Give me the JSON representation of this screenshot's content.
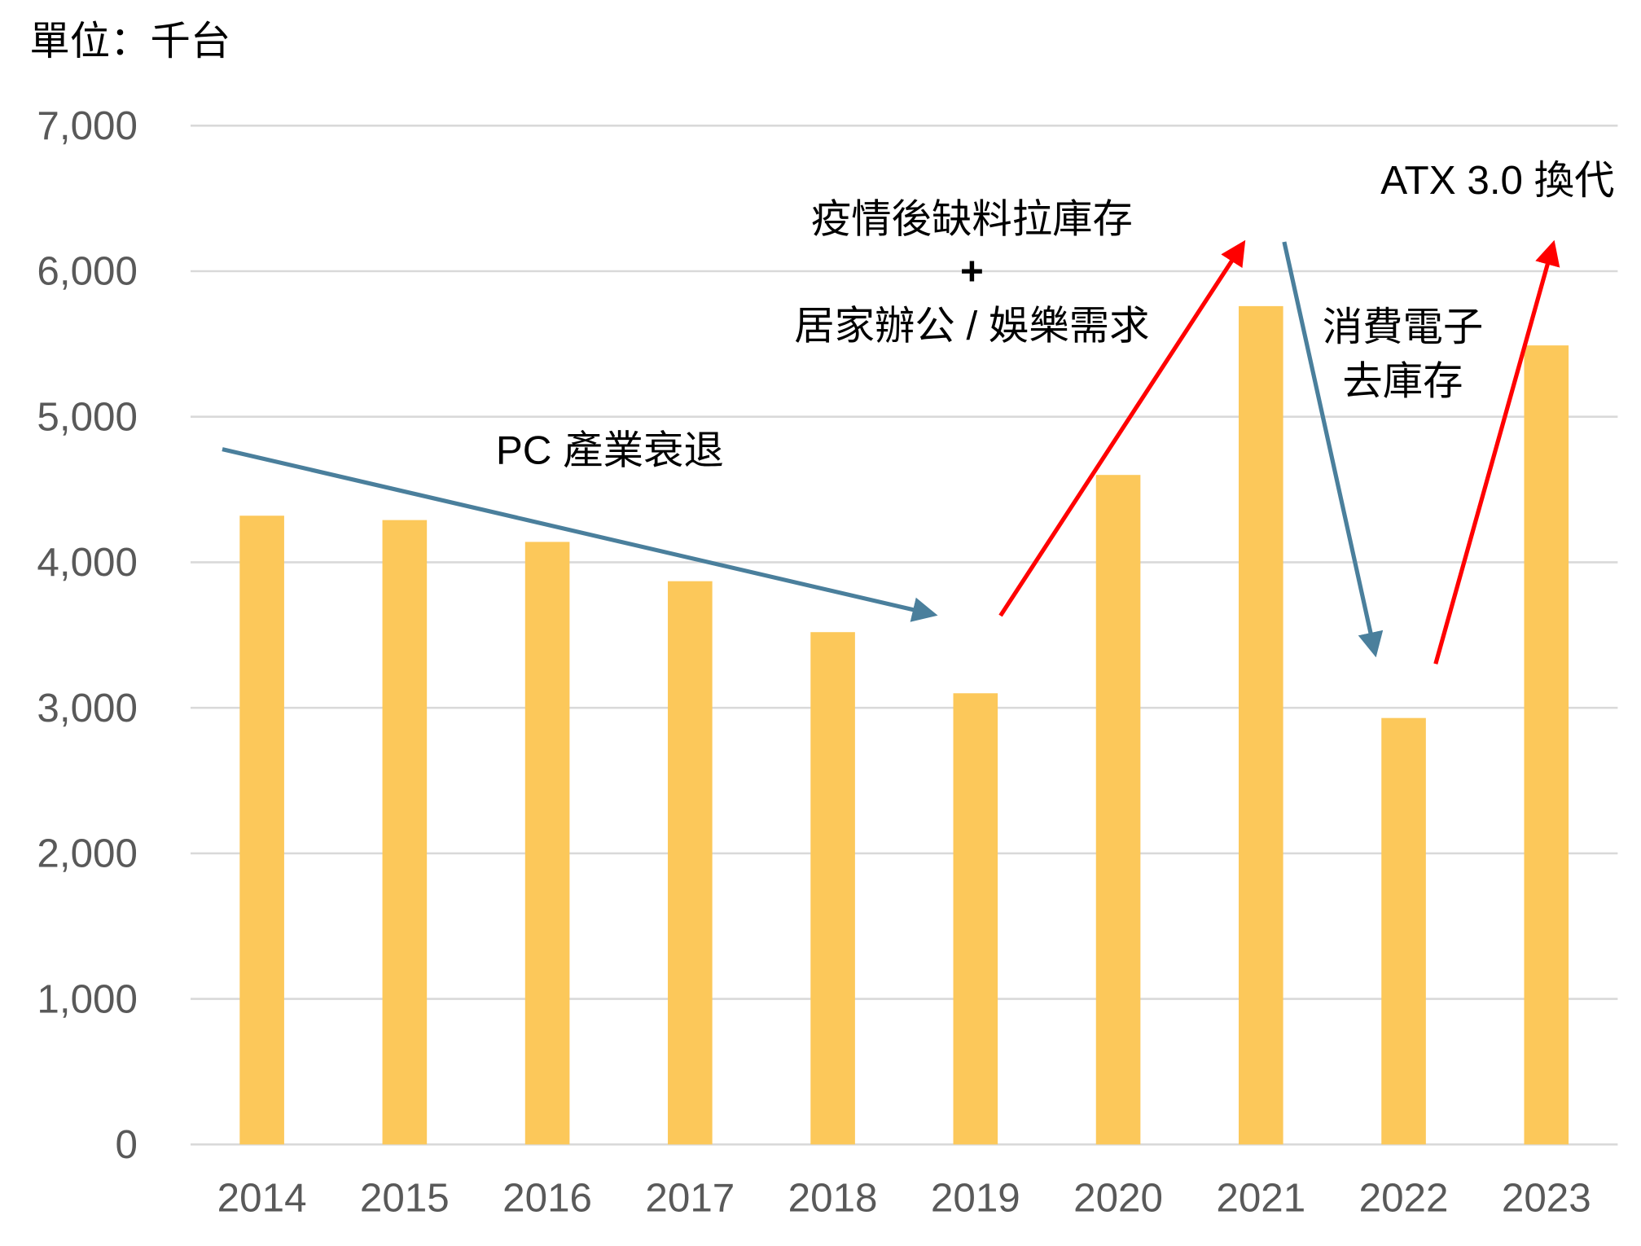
{
  "chart_data": {
    "type": "bar",
    "unit_label": "單位：千台",
    "categories": [
      "2014",
      "2015",
      "2016",
      "2017",
      "2018",
      "2019",
      "2020",
      "2021",
      "2022",
      "2023"
    ],
    "values": [
      4320,
      4290,
      4140,
      3870,
      3520,
      3100,
      4600,
      5760,
      2930,
      5490
    ],
    "ylim": [
      0,
      7000
    ],
    "yticks": [
      0,
      1000,
      2000,
      3000,
      4000,
      5000,
      6000,
      7000
    ],
    "ytick_labels": [
      "0",
      "1,000",
      "2,000",
      "3,000",
      "4,000",
      "5,000",
      "6,000",
      "7,000"
    ],
    "grid": true,
    "bar_color": "#FCC85A",
    "annotations": {
      "decline": "PC 產業衰退",
      "surge_line1": "疫情後缺料拉庫存",
      "surge_plus": "+",
      "surge_line2": "居家辦公 / 娛樂需求",
      "destock_line1": "消費電子",
      "destock_line2": "去庫存",
      "atx": "ATX 3.0 換代"
    },
    "arrow_colors": {
      "down": "#4A7F9C",
      "up": "#FF0000"
    }
  }
}
